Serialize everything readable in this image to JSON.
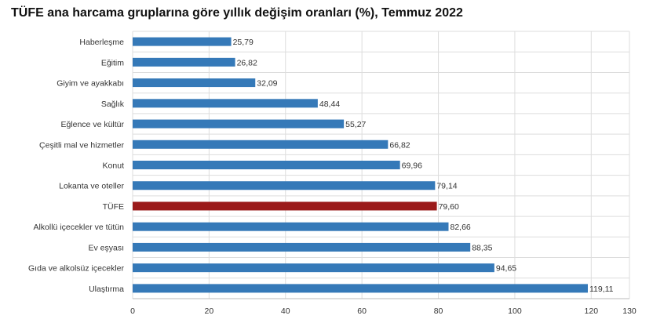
{
  "chart_data": {
    "type": "bar",
    "orientation": "horizontal",
    "title": "TÜFE ana harcama gruplarına göre yıllık değişim oranları (%), Temmuz 2022",
    "categories": [
      "Haberleşme",
      "Eğitim",
      "Giyim ve ayakkabı",
      "Sağlık",
      "Eğlence ve kültür",
      "Çeşitli mal ve hizmetler",
      "Konut",
      "Lokanta ve oteller",
      "TÜFE",
      "Alkollü içecekler ve tütün",
      "Ev eşyası",
      "Gıda ve alkolsüz içecekler",
      "Ulaştırma"
    ],
    "values": [
      25.79,
      26.82,
      32.09,
      48.44,
      55.27,
      66.82,
      69.96,
      79.14,
      79.6,
      82.66,
      88.35,
      94.65,
      119.11
    ],
    "value_labels": [
      "25,79",
      "26,82",
      "32,09",
      "48,44",
      "55,27",
      "66,82",
      "69,96",
      "79,14",
      "79,60",
      "82,66",
      "88,35",
      "94,65",
      "119,11"
    ],
    "highlight_category": "TÜFE",
    "xlim": [
      0,
      130
    ],
    "xticks": [
      0,
      20,
      40,
      60,
      80,
      100,
      120,
      130
    ],
    "grid": true,
    "colors": {
      "bar": "#3579b8",
      "highlight": "#9b1a1a",
      "grid": "#dddddd"
    }
  }
}
